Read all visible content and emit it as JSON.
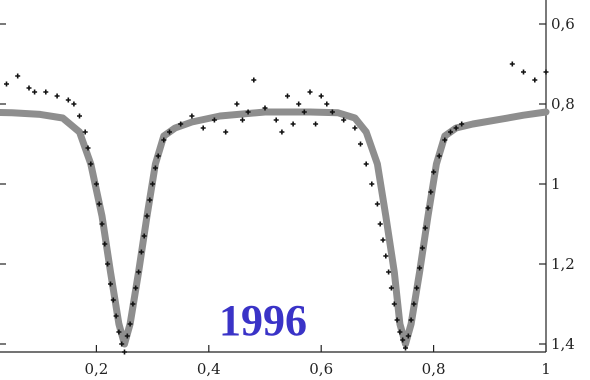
{
  "chart_data": {
    "type": "scatter",
    "annotation": "1996",
    "annotation_color": "#3a33c7",
    "model_color": "#8e8e8e",
    "obs_color": "#111111",
    "xlim": [
      0,
      1
    ],
    "ylim": [
      0.6,
      1.42
    ],
    "y_inverted": true,
    "grid": false,
    "x_ticks": [
      {
        "value": 0.2,
        "label": "0,2"
      },
      {
        "value": 0.4,
        "label": "0,4"
      },
      {
        "value": 0.6,
        "label": "0,6"
      },
      {
        "value": 0.8,
        "label": "0,8"
      },
      {
        "value": 1.0,
        "label": "1"
      }
    ],
    "y_ticks": [
      {
        "value": 0.6,
        "label": "0,6"
      },
      {
        "value": 0.8,
        "label": "0,8"
      },
      {
        "value": 1.0,
        "label": "1"
      },
      {
        "value": 1.2,
        "label": "1,2"
      },
      {
        "value": 1.4,
        "label": "1,4"
      }
    ],
    "series": [
      {
        "kind": "model-curve",
        "x": [
          0.0,
          0.05,
          0.1,
          0.14,
          0.17,
          0.19,
          0.21,
          0.225,
          0.24,
          0.25,
          0.26,
          0.275,
          0.29,
          0.305,
          0.32,
          0.34,
          0.37,
          0.42,
          0.5,
          0.58,
          0.63,
          0.66,
          0.68,
          0.7,
          0.715,
          0.73,
          0.74,
          0.75,
          0.76,
          0.775,
          0.79,
          0.805,
          0.82,
          0.84,
          0.87,
          0.92,
          0.96,
          1.0
        ],
        "y": [
          0.82,
          0.822,
          0.826,
          0.835,
          0.87,
          0.95,
          1.08,
          1.22,
          1.35,
          1.4,
          1.35,
          1.22,
          1.08,
          0.95,
          0.88,
          0.86,
          0.845,
          0.83,
          0.82,
          0.82,
          0.822,
          0.835,
          0.87,
          0.95,
          1.08,
          1.22,
          1.35,
          1.4,
          1.35,
          1.22,
          1.08,
          0.95,
          0.88,
          0.86,
          0.85,
          0.838,
          0.828,
          0.82
        ]
      },
      {
        "kind": "observations",
        "x": [
          0.0,
          0.02,
          0.04,
          0.06,
          0.08,
          0.09,
          0.11,
          0.13,
          0.15,
          0.16,
          0.17,
          0.18,
          0.185,
          0.19,
          0.2,
          0.205,
          0.21,
          0.215,
          0.22,
          0.225,
          0.23,
          0.235,
          0.24,
          0.245,
          0.25,
          0.255,
          0.26,
          0.265,
          0.27,
          0.275,
          0.28,
          0.285,
          0.29,
          0.295,
          0.3,
          0.305,
          0.31,
          0.32,
          0.33,
          0.35,
          0.37,
          0.39,
          0.41,
          0.43,
          0.45,
          0.46,
          0.47,
          0.48,
          0.5,
          0.52,
          0.53,
          0.54,
          0.55,
          0.56,
          0.57,
          0.58,
          0.59,
          0.6,
          0.61,
          0.62,
          0.64,
          0.66,
          0.67,
          0.68,
          0.69,
          0.7,
          0.705,
          0.71,
          0.715,
          0.72,
          0.725,
          0.73,
          0.735,
          0.74,
          0.745,
          0.75,
          0.755,
          0.76,
          0.765,
          0.77,
          0.775,
          0.78,
          0.785,
          0.79,
          0.795,
          0.8,
          0.81,
          0.82,
          0.83,
          0.84,
          0.85,
          0.94,
          0.96,
          0.98,
          1.0
        ],
        "y": [
          0.71,
          0.72,
          0.75,
          0.73,
          0.76,
          0.77,
          0.77,
          0.78,
          0.79,
          0.8,
          0.83,
          0.87,
          0.91,
          0.95,
          1.0,
          1.05,
          1.1,
          1.15,
          1.2,
          1.25,
          1.29,
          1.33,
          1.37,
          1.4,
          1.42,
          1.38,
          1.35,
          1.3,
          1.26,
          1.22,
          1.17,
          1.13,
          1.08,
          1.04,
          1.0,
          0.96,
          0.93,
          0.89,
          0.87,
          0.85,
          0.83,
          0.86,
          0.84,
          0.87,
          0.8,
          0.84,
          0.82,
          0.74,
          0.81,
          0.84,
          0.87,
          0.78,
          0.85,
          0.8,
          0.82,
          0.77,
          0.85,
          0.78,
          0.8,
          0.82,
          0.84,
          0.86,
          0.9,
          0.95,
          1.0,
          1.05,
          1.1,
          1.14,
          1.18,
          1.22,
          1.26,
          1.3,
          1.34,
          1.37,
          1.39,
          1.41,
          1.38,
          1.34,
          1.3,
          1.26,
          1.21,
          1.16,
          1.11,
          1.06,
          1.02,
          0.97,
          0.93,
          0.89,
          0.87,
          0.86,
          0.85,
          0.7,
          0.72,
          0.74,
          0.72
        ]
      }
    ]
  }
}
